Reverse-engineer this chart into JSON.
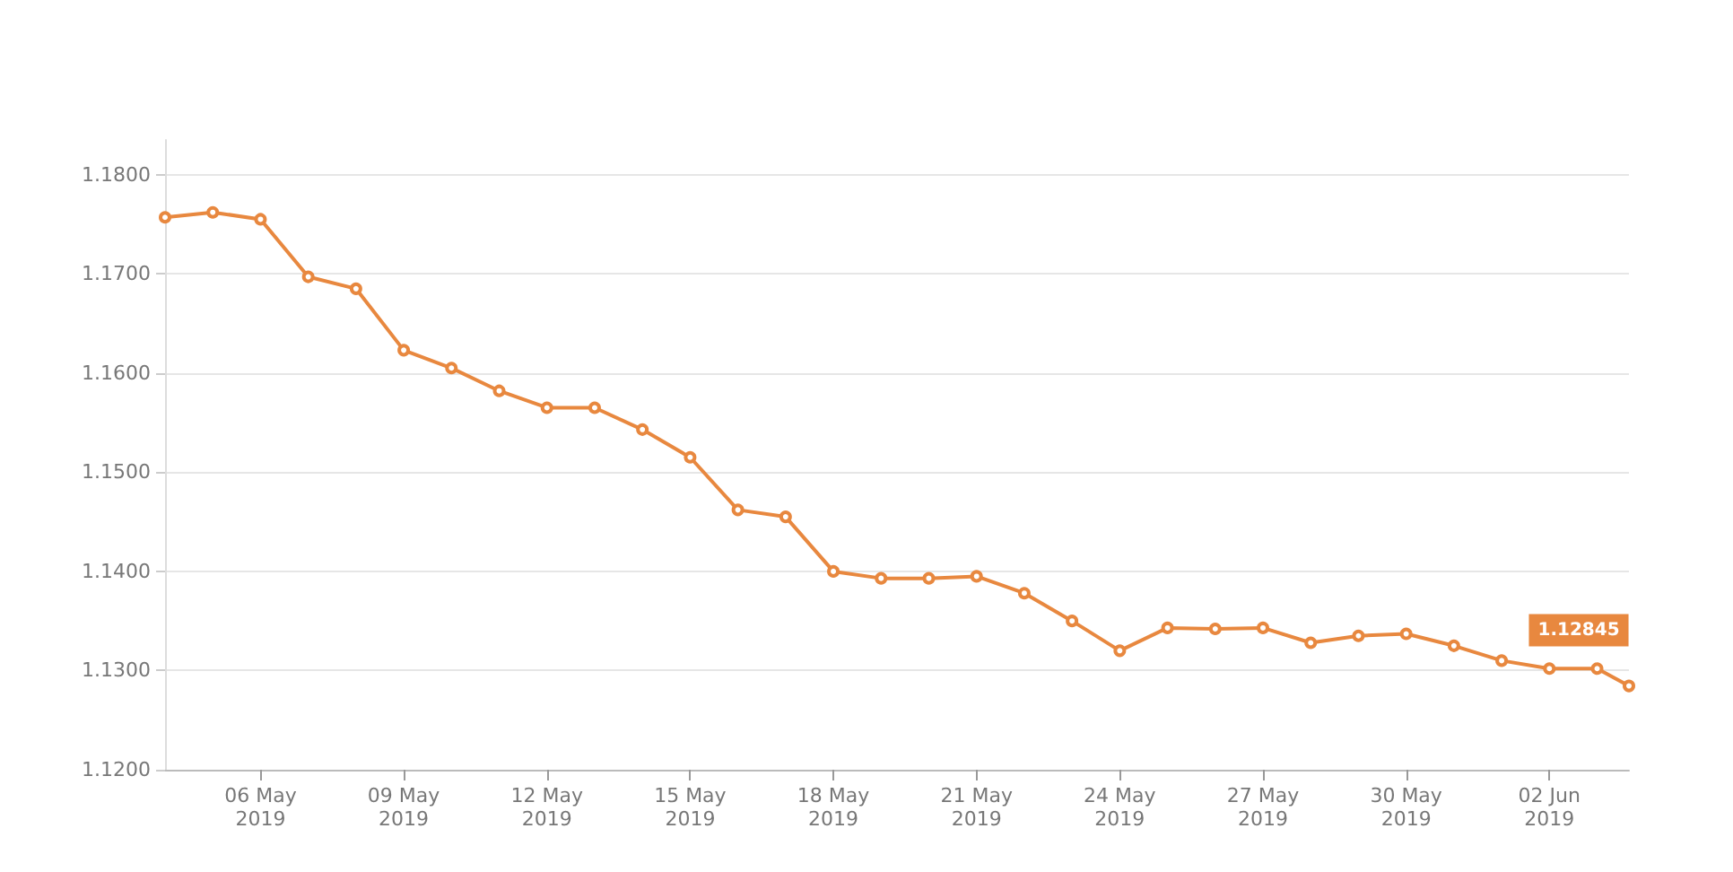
{
  "chart_data": {
    "type": "line",
    "x": [
      "2019-05-04",
      "2019-05-05",
      "2019-05-06",
      "2019-05-07",
      "2019-05-08",
      "2019-05-09",
      "2019-05-10",
      "2019-05-11",
      "2019-05-12",
      "2019-05-13",
      "2019-05-14",
      "2019-05-15",
      "2019-05-16",
      "2019-05-17",
      "2019-05-18",
      "2019-05-19",
      "2019-05-20",
      "2019-05-21",
      "2019-05-22",
      "2019-05-23",
      "2019-05-24",
      "2019-05-25",
      "2019-05-26",
      "2019-05-27",
      "2019-05-28",
      "2019-05-29",
      "2019-05-30",
      "2019-05-31",
      "2019-06-01",
      "2019-06-02",
      "2019-06-03",
      "2019-06-03T16:00"
    ],
    "series": [
      {
        "color": "#e8883f",
        "values": [
          1.1757,
          1.1762,
          1.1755,
          1.1697,
          1.1685,
          1.1623,
          1.1605,
          1.1582,
          1.1565,
          1.1565,
          1.1543,
          1.1515,
          1.1462,
          1.1455,
          1.14,
          1.1393,
          1.1393,
          1.1395,
          1.1378,
          1.135,
          1.132,
          1.1343,
          1.1342,
          1.1343,
          1.1328,
          1.1335,
          1.1337,
          1.1325,
          1.131,
          1.1302,
          1.1302,
          1.12845
        ]
      }
    ],
    "xlim": [
      "2019-05-04",
      "2019-06-03T16:00"
    ],
    "xticks": [
      {
        "value": "2019-05-06",
        "label": "06 May 2019"
      },
      {
        "value": "2019-05-09",
        "label": "09 May 2019"
      },
      {
        "value": "2019-05-12",
        "label": "12 May 2019"
      },
      {
        "value": "2019-05-15",
        "label": "15 May 2019"
      },
      {
        "value": "2019-05-18",
        "label": "18 May 2019"
      },
      {
        "value": "2019-05-21",
        "label": "21 May 2019"
      },
      {
        "value": "2019-05-24",
        "label": "24 May 2019"
      },
      {
        "value": "2019-05-27",
        "label": "27 May 2019"
      },
      {
        "value": "2019-05-30",
        "label": "30 May 2019"
      },
      {
        "value": "2019-06-02",
        "label": "02 Jun 2019"
      }
    ],
    "ylim": [
      1.12,
      1.1835
    ],
    "yticks": [
      {
        "value": 1.12,
        "label": "1.1200"
      },
      {
        "value": 1.13,
        "label": "1.1300"
      },
      {
        "value": 1.14,
        "label": "1.1400"
      },
      {
        "value": 1.15,
        "label": "1.1500"
      },
      {
        "value": 1.16,
        "label": "1.1600"
      },
      {
        "value": 1.17,
        "label": "1.1700"
      },
      {
        "value": 1.18,
        "label": "1.1800"
      }
    ],
    "annotations": [
      {
        "text": "1.12845",
        "x": "2019-06-03T16:00",
        "y": 1.12845
      }
    ],
    "grid": "y",
    "marker": "circle",
    "line_style": "solid"
  }
}
